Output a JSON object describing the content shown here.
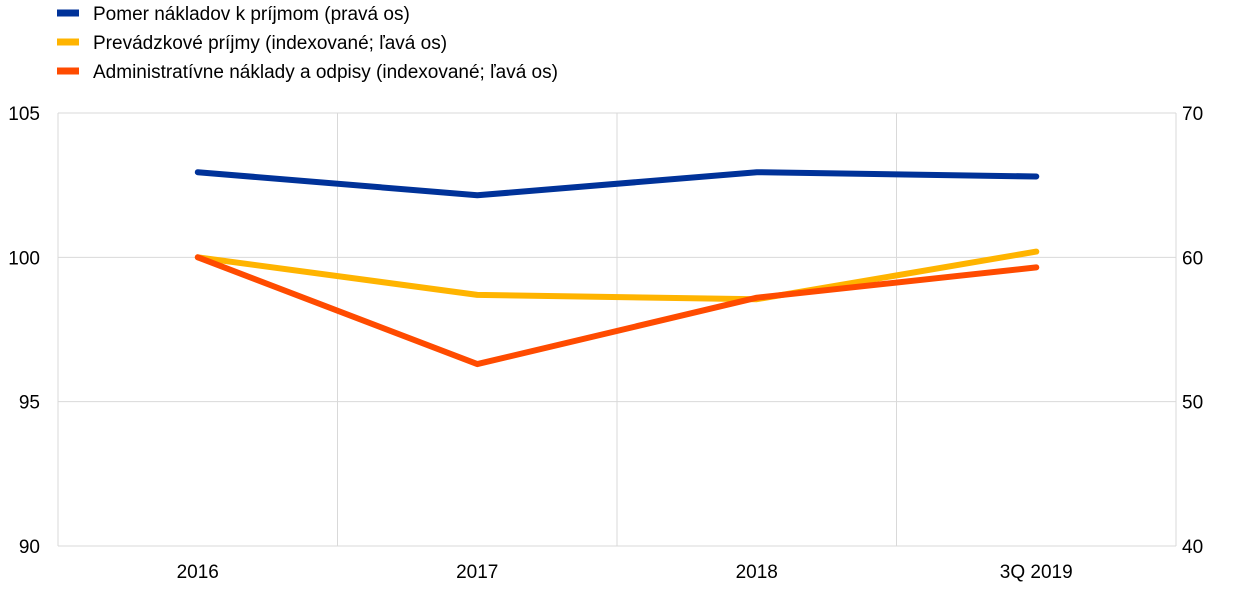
{
  "chart_data": {
    "type": "line",
    "categories": [
      "2016",
      "2017",
      "2018",
      "3Q 2019"
    ],
    "left_axis": {
      "ylim": [
        90,
        105
      ],
      "ticks": [
        "90",
        "95",
        "100",
        "105"
      ]
    },
    "right_axis": {
      "ylim": [
        40,
        70
      ],
      "ticks": [
        "40",
        "50",
        "60",
        "70"
      ]
    },
    "grid": true,
    "legend_position": "top-left",
    "series": [
      {
        "name": "Pomer nákladov k príjmom (pravá os)",
        "axis": "right",
        "color": "#003299",
        "values": [
          65.9,
          64.3,
          65.9,
          65.6
        ]
      },
      {
        "name": "Prevádzkové príjmy (indexované; ľavá os)",
        "axis": "left",
        "color": "#FFB400",
        "values": [
          100.0,
          98.7,
          98.55,
          100.2
        ]
      },
      {
        "name": "Administratívne náklady a odpisy (indexované; ľavá os)",
        "axis": "left",
        "color": "#FF4B00",
        "values": [
          100.0,
          96.3,
          98.6,
          99.65
        ]
      }
    ]
  }
}
